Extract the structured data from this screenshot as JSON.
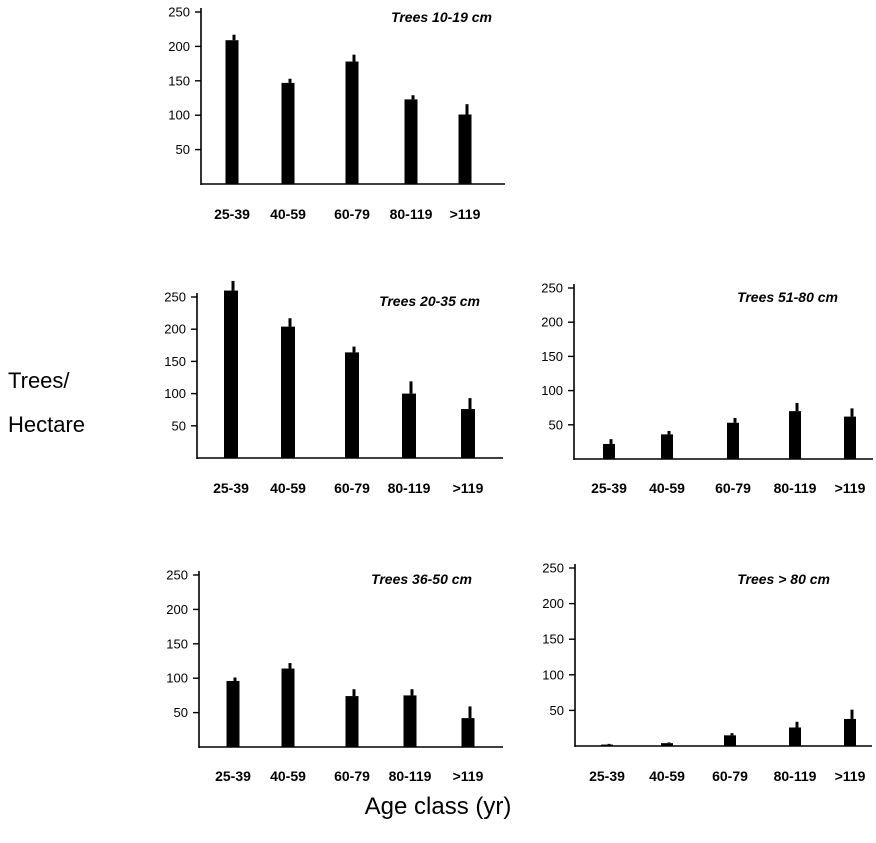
{
  "figure": {
    "ylabel_line1": "Trees/",
    "ylabel_line2": "Hectare",
    "xlabel": "Age class (yr)"
  },
  "chart_data": [
    {
      "type": "bar",
      "title": "Trees 10-19 cm",
      "categories": [
        "25-39",
        "40-59",
        "60-79",
        "80-119",
        ">119"
      ],
      "values": [
        209,
        147,
        178,
        123,
        101
      ],
      "errors": [
        8,
        6,
        10,
        6,
        15
      ],
      "yticks": [
        50,
        100,
        150,
        200,
        250
      ],
      "ylim": [
        0,
        250
      ],
      "xlabel": "Age class (yr)",
      "ylabel": "Trees/ Hectare"
    },
    {
      "type": "bar",
      "title": "Trees 20-35 cm",
      "categories": [
        "25-39",
        "40-59",
        "60-79",
        "80-119",
        ">119"
      ],
      "values": [
        260,
        204,
        164,
        100,
        76
      ],
      "errors": [
        15,
        13,
        9,
        19,
        17
      ],
      "yticks": [
        50,
        100,
        150,
        200,
        250
      ],
      "ylim": [
        0,
        250
      ],
      "xlabel": "Age class (yr)",
      "ylabel": "Trees/ Hectare"
    },
    {
      "type": "bar",
      "title": "Trees 51-80 cm",
      "categories": [
        "25-39",
        "40-59",
        "60-79",
        "80-119",
        ">119"
      ],
      "values": [
        22,
        36,
        53,
        70,
        62
      ],
      "errors": [
        7,
        5,
        7,
        12,
        12
      ],
      "yticks": [
        50,
        100,
        150,
        200,
        250
      ],
      "ylim": [
        0,
        250
      ],
      "xlabel": "Age class (yr)",
      "ylabel": "Trees/ Hectare"
    },
    {
      "type": "bar",
      "title": "Trees 36-50 cm",
      "categories": [
        "25-39",
        "40-59",
        "60-79",
        "80-119",
        ">119"
      ],
      "values": [
        96,
        114,
        74,
        75,
        42
      ],
      "errors": [
        5,
        8,
        10,
        9,
        17
      ],
      "yticks": [
        50,
        100,
        150,
        200,
        250
      ],
      "ylim": [
        0,
        250
      ],
      "xlabel": "Age class (yr)",
      "ylabel": "Trees/ Hectare"
    },
    {
      "type": "bar",
      "title": "Trees > 80 cm",
      "categories": [
        "25-39",
        "40-59",
        "60-79",
        "80-119",
        ">119"
      ],
      "values": [
        2,
        4,
        15,
        26,
        38
      ],
      "errors": [
        1,
        1,
        3,
        8,
        13
      ],
      "yticks": [
        50,
        100,
        150,
        200,
        250
      ],
      "ylim": [
        0,
        250
      ],
      "xlabel": "Age class (yr)",
      "ylabel": "Trees/ Hectare"
    }
  ]
}
